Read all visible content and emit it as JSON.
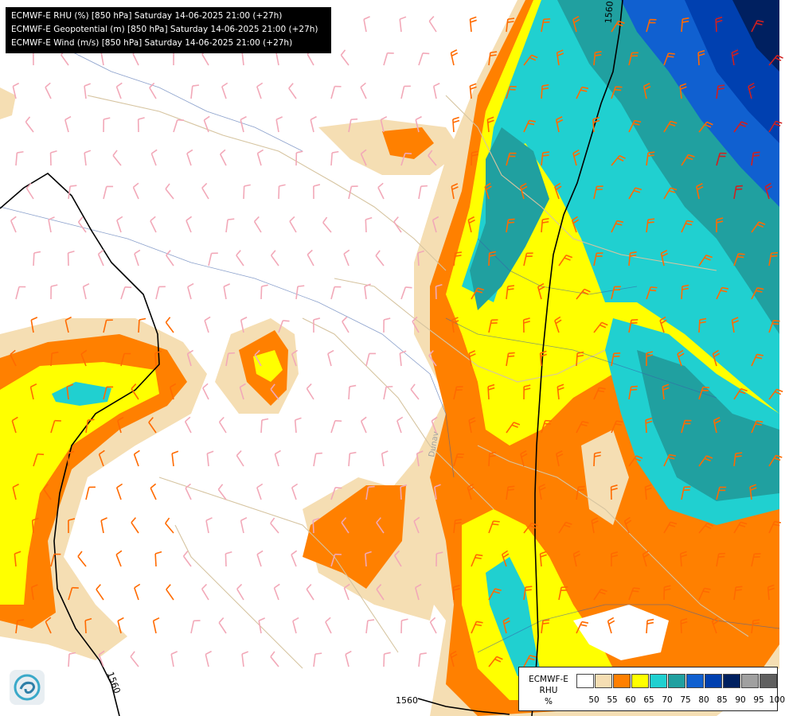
{
  "header": {
    "lines": [
      "ECMWF-E RHU (%) [850 hPa] Saturday 14-06-2025 21:00 (+27h)",
      "ECMWF-E Geopotential (m) [850 hPa] Saturday 14-06-2025 21:00 (+27h)",
      "ECMWF-E Wind (m/s) [850 hPa] Saturday 14-06-2025 21:00 (+27h)"
    ]
  },
  "contours": {
    "label_top": "1560",
    "label_bottom": "1560",
    "label_left": "1560"
  },
  "map_labels": {
    "river": "Dunav"
  },
  "legend": {
    "title_line1": "ECMWF-E",
    "title_line2": "RHU",
    "title_line3": "%",
    "colors": [
      "#ffffff",
      "#f5deb3",
      "#ff8000",
      "#ffff00",
      "#20d0d0",
      "#20a0a0",
      "#1060d0",
      "#0040b0",
      "#002060",
      "#a0a0a0",
      "#606060"
    ],
    "ticks": [
      "50",
      "55",
      "60",
      "65",
      "70",
      "75",
      "80",
      "85",
      "90",
      "95",
      "100"
    ]
  },
  "icons": {
    "logo": "ecmwf-swirl-icon"
  }
}
